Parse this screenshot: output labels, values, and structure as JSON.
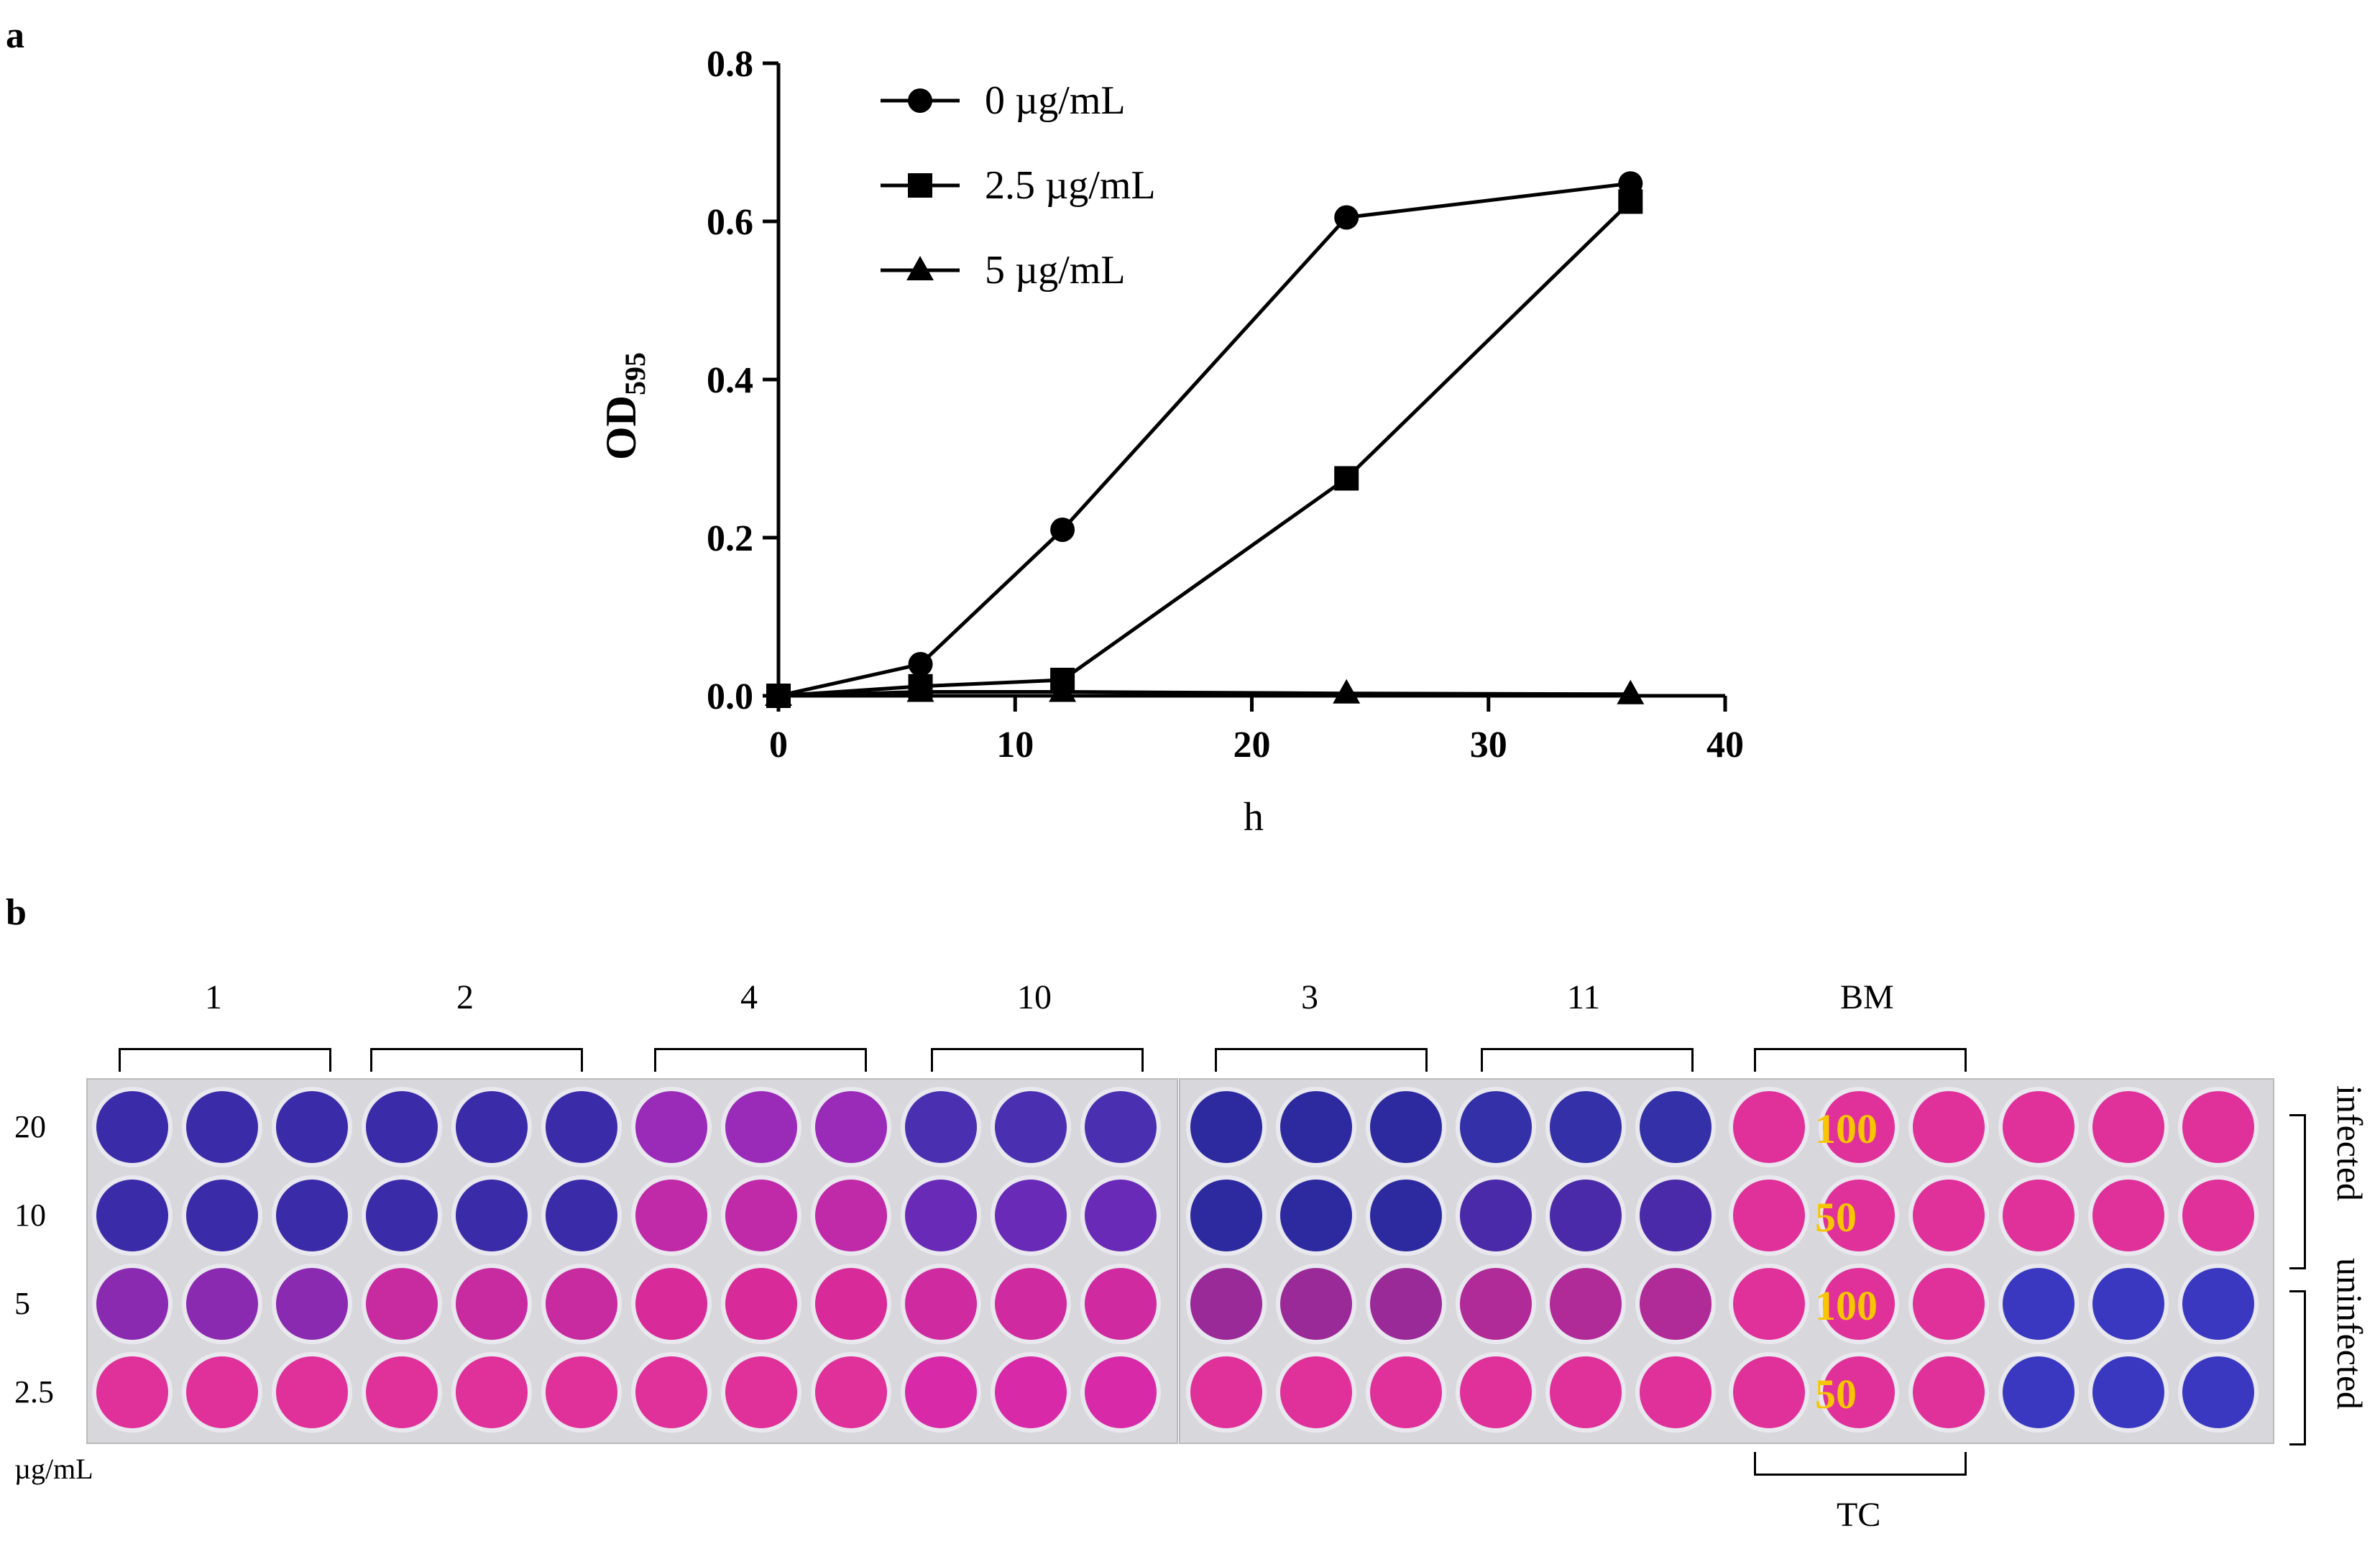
{
  "panel_a": "a",
  "panel_b": "b",
  "chart_data": {
    "type": "line",
    "xlabel": "h",
    "ylabel": "OD",
    "ylabel_sub": "595",
    "xlim": [
      0,
      40
    ],
    "ylim": [
      0,
      0.8
    ],
    "xticks": [
      0,
      10,
      20,
      30,
      40
    ],
    "yticks": [
      "0.0",
      "0.2",
      "0.4",
      "0.6",
      "0.8"
    ],
    "x": [
      0,
      6,
      12,
      24,
      36
    ],
    "series": [
      {
        "name": "0 µg/mL",
        "marker": "circle",
        "values": [
          0,
          0.04,
          0.21,
          0.605,
          0.648
        ]
      },
      {
        "name": "2.5 µg/mL",
        "marker": "square",
        "values": [
          0,
          0.012,
          0.02,
          0.275,
          0.625
        ]
      },
      {
        "name": "5 µg/mL",
        "marker": "triangle",
        "values": [
          0,
          0.005,
          0.005,
          0.003,
          0.002
        ]
      }
    ]
  },
  "plate": {
    "groups": [
      "1",
      "2",
      "4",
      "10",
      "3",
      "11",
      "BM"
    ],
    "bottom_group": "TC",
    "rows": [
      "20",
      "10",
      "5",
      "2.5"
    ],
    "unit": "µg/mL",
    "side": [
      "infected",
      "uninfected"
    ],
    "well_labels": [
      "100",
      "50",
      "100",
      "50"
    ]
  }
}
